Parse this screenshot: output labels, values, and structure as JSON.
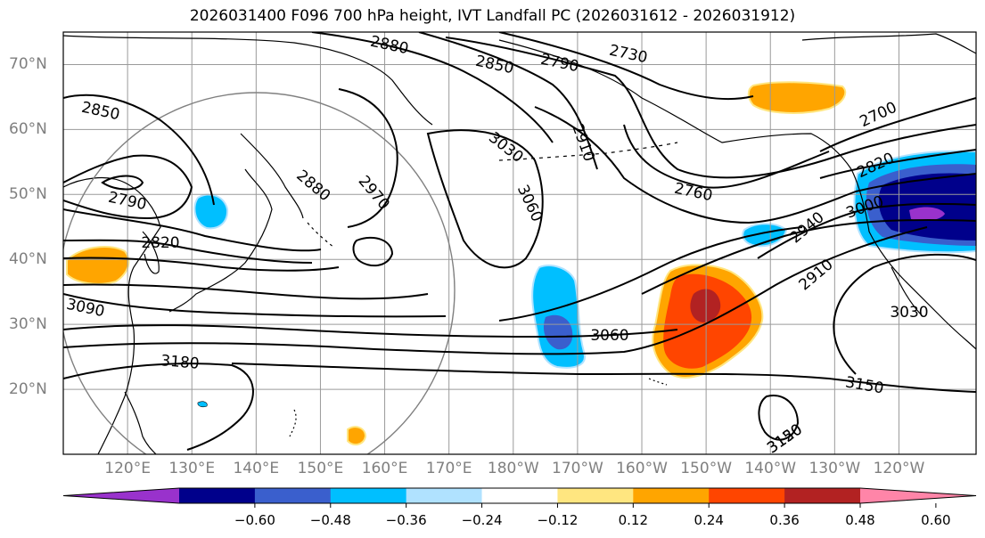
{
  "title": "2026031400 F096 700 hPa height, IVT Landfall PC (2026031612 - 2026031912)",
  "map": {
    "lat_range": [
      10,
      75
    ],
    "lon_range_east": [
      110,
      252
    ],
    "lon_labels": [
      "120°E",
      "130°E",
      "140°E",
      "150°E",
      "160°E",
      "170°E",
      "180°W",
      "170°W",
      "160°W",
      "150°W",
      "140°W",
      "130°W",
      "120°W"
    ],
    "lat_labels": [
      "70°N",
      "60°N",
      "50°N",
      "40°N",
      "30°N",
      "20°N"
    ],
    "gridline_color": "#9a9a9a",
    "coastline_color": "#000000",
    "contour_color": "#000000",
    "circle_outline_color": "#808080",
    "contour_labels": [
      "2880",
      "2850",
      "2790",
      "2730",
      "2850",
      "2700",
      "3030",
      "2910",
      "2760",
      "2820",
      "2790",
      "2880",
      "2970",
      "3060",
      "2940",
      "3000",
      "2820",
      "2910",
      "3090",
      "3060",
      "3030",
      "3180",
      "3150",
      "3150",
      "3120"
    ]
  },
  "colorbar": {
    "colors": [
      "#9932cc",
      "#00008b",
      "#3a5fcd",
      "#00bfff",
      "#b0e2ff",
      "#ffffff",
      "#ffe680",
      "#ffa500",
      "#ff4500",
      "#b22222",
      "#ff85a8"
    ],
    "tick_labels": [
      "−0.60",
      "−0.48",
      "−0.36",
      "−0.24",
      "−0.12",
      "0.12",
      "0.24",
      "0.36",
      "0.48",
      "0.60"
    ],
    "extend": "both"
  }
}
